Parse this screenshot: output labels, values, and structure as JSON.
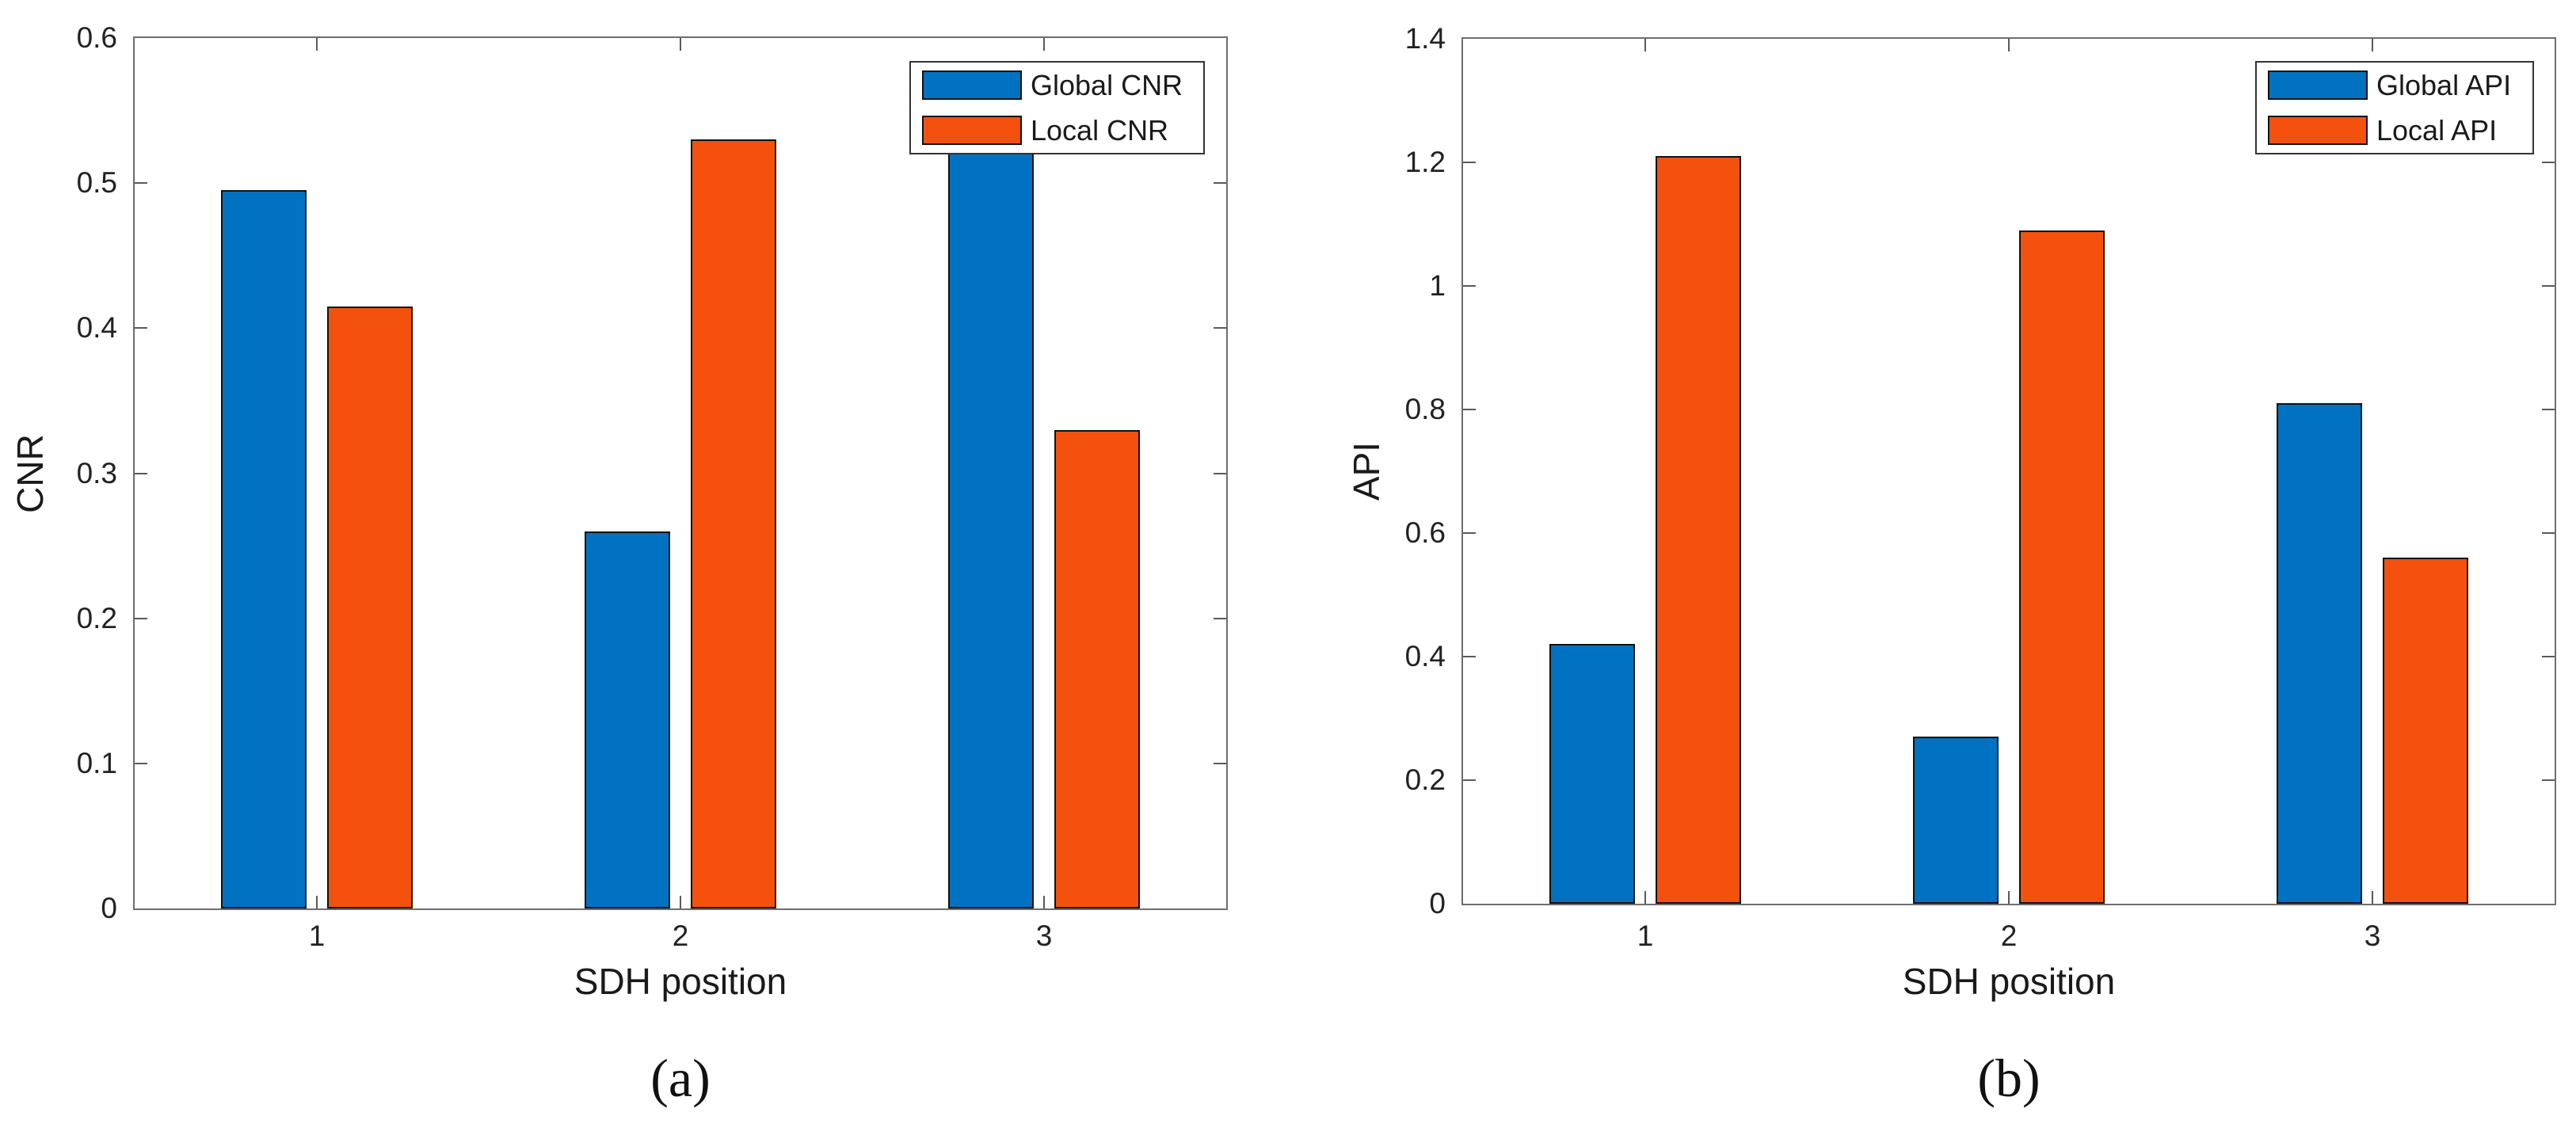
{
  "figure": {
    "description": "Two grouped bar charts comparing global and local metrics versus SDH position",
    "background": "#ffffff"
  },
  "colors": {
    "series_blue": "#0072c1",
    "series_orange": "#f4510e",
    "axis_line": "#6e6e6e",
    "tick_mark": "#5a5a5a",
    "text": "#1a1a1a"
  },
  "chart_data": [
    {
      "id": "cnr",
      "type": "bar",
      "caption": "(a)",
      "title": "",
      "xlabel": "SDH position",
      "ylabel": "CNR",
      "categories": [
        "1",
        "2",
        "3"
      ],
      "series": [
        {
          "name": "Global CNR",
          "color": "#0072c1",
          "values": [
            0.495,
            0.26,
            0.53
          ]
        },
        {
          "name": "Local CNR",
          "color": "#f4510e",
          "values": [
            0.415,
            0.53,
            0.33
          ]
        }
      ],
      "ylim": [
        0,
        0.6
      ],
      "yticks": [
        0,
        0.1,
        0.2,
        0.3,
        0.4,
        0.5,
        0.6
      ],
      "ytick_labels": [
        "0",
        "0.1",
        "0.2",
        "0.3",
        "0.4",
        "0.5",
        "0.6"
      ],
      "grid": false,
      "legend": {
        "position": "top-right",
        "entries": [
          "Global CNR",
          "Local CNR"
        ]
      },
      "note": "Top of the Global CNR bar at position 3 is partially occluded by the legend box"
    },
    {
      "id": "api",
      "type": "bar",
      "caption": "(b)",
      "title": "",
      "xlabel": "SDH position",
      "ylabel": "API",
      "categories": [
        "1",
        "2",
        "3"
      ],
      "series": [
        {
          "name": "Global API",
          "color": "#0072c1",
          "values": [
            0.42,
            0.27,
            0.81
          ]
        },
        {
          "name": "Local API",
          "color": "#f4510e",
          "values": [
            1.21,
            1.09,
            0.56
          ]
        }
      ],
      "ylim": [
        0,
        1.4
      ],
      "yticks": [
        0,
        0.2,
        0.4,
        0.6,
        0.8,
        1.0,
        1.2,
        1.4
      ],
      "ytick_labels": [
        "0",
        "0.2",
        "0.4",
        "0.6",
        "0.8",
        "1",
        "1.2",
        "1.4"
      ],
      "grid": false,
      "legend": {
        "position": "top-right",
        "entries": [
          "Global API",
          "Local API"
        ]
      },
      "note": ""
    }
  ]
}
